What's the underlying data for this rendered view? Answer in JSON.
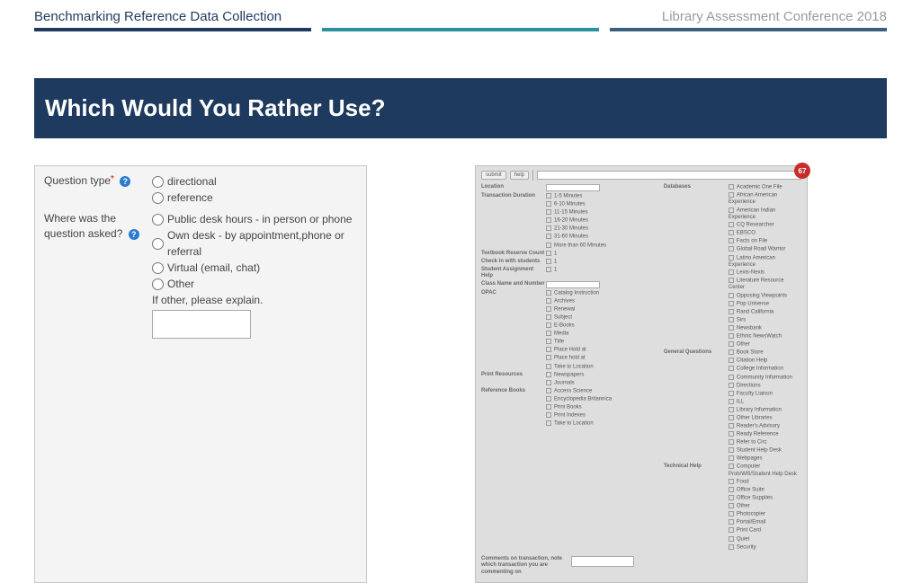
{
  "header": {
    "left": "Benchmarking Reference Data Collection",
    "right": "Library Assessment Conference 2018"
  },
  "bar_colors": {
    "a": "#1f3a5f",
    "b": "#2a939e",
    "c": "#3b5f7d"
  },
  "title": "Which Would You Rather Use?",
  "formA": {
    "q1_label": "Question type",
    "q1_options": [
      "directional",
      "reference"
    ],
    "q2_label": "Where was the question asked?",
    "q2_options": [
      "Public desk hours - in person or phone",
      "Own desk - by appointment,phone or referral",
      "Virtual (email, chat)",
      "Other"
    ],
    "other_label": "If other, please explain."
  },
  "badge": "67",
  "formB": {
    "top_buttons": [
      "submit",
      "help"
    ],
    "left": [
      {
        "label": "Location",
        "items": [
          ""
        ],
        "input": true
      },
      {
        "label": "Transaction Duration",
        "items": [
          "1-5 Minutes",
          "6-10 Minutes",
          "11-15 Minutes",
          "16-20 Minutes",
          "21-30 Minutes",
          "31-60 Minutes",
          "More than 60 Minutes"
        ]
      },
      {
        "label": "Textbook Reserve Count",
        "items": [
          "1"
        ]
      },
      {
        "label": "Check in with students",
        "items": [
          "1"
        ]
      },
      {
        "label": "Student Assignment Help",
        "items": [
          "1"
        ]
      },
      {
        "label": "Class Name and Number",
        "items": [
          ""
        ],
        "input": true
      },
      {
        "label": "OPAC",
        "items": [
          "Catalog Instruction",
          "Archives",
          "Renewal",
          "Subject",
          "E-Books",
          "Media",
          "Title",
          "Place Hold at",
          "Place hold at",
          "Take to Location"
        ]
      },
      {
        "label": "Print Resources",
        "items": [
          "Newspapers",
          "Journals"
        ]
      },
      {
        "label": "Reference Books",
        "items": [
          "Access Science",
          "Encyclopedia Britannica",
          "Print Books",
          "Print Indexes",
          "Take to Location"
        ]
      }
    ],
    "right": [
      {
        "label": "Databases",
        "items": [
          "Academic One File",
          "African American Experience",
          "American Indian Experience",
          "CQ Researcher",
          "EBSCO",
          "Facts on File",
          "Global Road Warrior",
          "Latino American Experience",
          "Lexis-Nexis",
          "Literature Resource Center",
          "Opposing Viewpoints",
          "Pop Universe",
          "Rand California",
          "Sirs",
          "Newsbank",
          "Ethnic NewsWatch",
          "Other"
        ]
      },
      {
        "label": "General Questions",
        "items": [
          "Book Store",
          "Citation Help",
          "College Information",
          "Community Information",
          "Directions",
          "Faculty Liaison",
          "ILL",
          "Library Information",
          "Other Libraries",
          "Reader's Advisory",
          "Ready Reference",
          "Refer to Circ",
          "Student Help Desk",
          "Webpages"
        ]
      },
      {
        "label": "Technical Help",
        "items": [
          "Computer Prob/Wifi/Student Help Desk",
          "Food",
          "Office Suite",
          "Office Supplies",
          "Other",
          "Photocopier",
          "Portal/Email",
          "Print Card",
          "Quiet",
          "Security"
        ]
      }
    ],
    "comments_label": "Comments on transaction, note which transaction you are commenting on"
  }
}
